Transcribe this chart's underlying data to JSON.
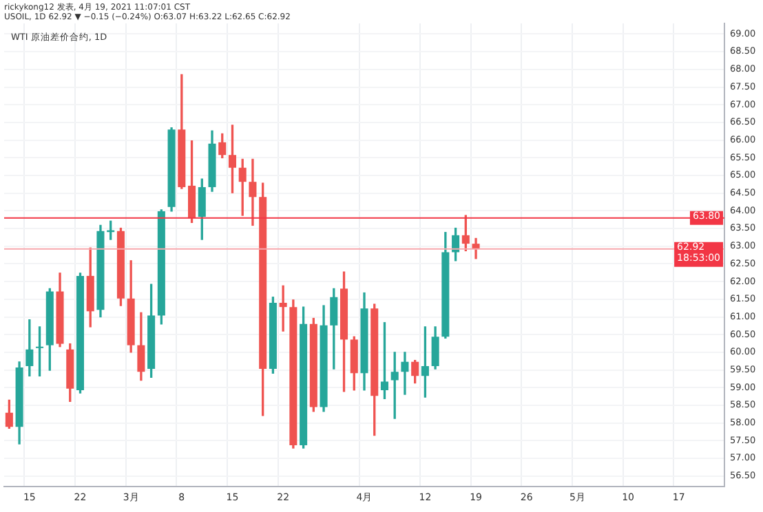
{
  "chart_data": {
    "type": "candlestick",
    "title": "WTI 原油差价合约, 1D",
    "annotations": [
      "rickykong12 发表, 4月 19, 2021 11:07:01 CST",
      "USOIL, 1D 62.92 ▼ −0.15 (−0.24%) O:63.07 H:63.22 L:62.65 C:62.92"
    ],
    "categories": [
      null,
      null,
      "15",
      null,
      null,
      null,
      null,
      "22",
      null,
      null,
      null,
      null,
      "3月",
      null,
      null,
      null,
      null,
      "8",
      null,
      null,
      null,
      null,
      "15",
      null,
      null,
      null,
      null,
      "22",
      null,
      null,
      null,
      null,
      null,
      null,
      null,
      "4月",
      null,
      null,
      null,
      null,
      null,
      "12",
      null,
      null,
      null,
      null,
      "19",
      null,
      null,
      null,
      null,
      "26",
      null,
      null,
      null,
      null,
      "5月",
      null,
      null,
      null,
      null,
      "10",
      null,
      null,
      null,
      null,
      "17",
      null,
      null,
      null,
      null
    ],
    "ohlc": [
      [
        58.29,
        58.65,
        57.85,
        57.89
      ],
      [
        57.89,
        59.73,
        57.41,
        59.57
      ],
      [
        59.61,
        60.92,
        59.33,
        60.08
      ],
      [
        60.12,
        60.72,
        59.33,
        60.14
      ],
      [
        60.2,
        61.8,
        59.49,
        61.72
      ],
      [
        61.72,
        62.24,
        60.16,
        60.24
      ],
      [
        60.08,
        60.24,
        58.61,
        58.97
      ],
      [
        58.93,
        62.24,
        58.85,
        62.16
      ],
      [
        62.16,
        62.95,
        60.72,
        61.16
      ],
      [
        61.2,
        63.59,
        61.0,
        63.43
      ],
      [
        63.4,
        63.71,
        63.19,
        63.45
      ],
      [
        63.43,
        63.51,
        61.32,
        61.52
      ],
      [
        61.52,
        62.59,
        60.0,
        60.2
      ],
      [
        60.2,
        61.12,
        59.21,
        59.45
      ],
      [
        59.53,
        61.92,
        59.29,
        61.04
      ],
      [
        61.04,
        64.03,
        60.8,
        63.99
      ],
      [
        64.11,
        66.35,
        63.99,
        66.3
      ],
      [
        66.3,
        67.85,
        64.63,
        64.67
      ],
      [
        64.71,
        65.98,
        63.67,
        63.79
      ],
      [
        63.83,
        64.9,
        63.19,
        64.67
      ],
      [
        64.67,
        66.26,
        64.55,
        65.9
      ],
      [
        65.94,
        66.18,
        65.5,
        65.58
      ],
      [
        65.58,
        66.42,
        64.51,
        65.22
      ],
      [
        65.22,
        65.46,
        63.87,
        64.82
      ],
      [
        64.82,
        65.46,
        63.59,
        64.39
      ],
      [
        64.39,
        64.78,
        58.21,
        59.53
      ],
      [
        59.53,
        61.56,
        59.41,
        61.4
      ],
      [
        61.4,
        61.88,
        60.6,
        61.28
      ],
      [
        61.28,
        61.48,
        57.29,
        57.37
      ],
      [
        57.37,
        61.28,
        57.29,
        60.8
      ],
      [
        60.8,
        60.96,
        58.33,
        58.45
      ],
      [
        58.45,
        61.32,
        58.33,
        60.76
      ],
      [
        60.76,
        61.8,
        59.53,
        61.56
      ],
      [
        61.8,
        62.27,
        58.89,
        60.36
      ],
      [
        60.36,
        60.44,
        58.93,
        59.41
      ],
      [
        59.41,
        61.68,
        58.93,
        61.24
      ],
      [
        61.24,
        61.36,
        57.65,
        58.77
      ],
      [
        58.93,
        60.84,
        58.69,
        59.17
      ],
      [
        59.21,
        60.0,
        58.13,
        59.45
      ],
      [
        59.45,
        60.0,
        58.81,
        59.73
      ],
      [
        59.73,
        59.77,
        59.13,
        59.33
      ],
      [
        59.33,
        60.72,
        58.73,
        59.61
      ],
      [
        59.61,
        60.72,
        59.53,
        60.44
      ],
      [
        60.44,
        63.39,
        60.4,
        62.83
      ],
      [
        62.83,
        63.51,
        62.59,
        63.31
      ],
      [
        63.31,
        63.87,
        62.87,
        63.07
      ],
      [
        63.07,
        63.22,
        62.65,
        62.92
      ],
      null,
      null,
      null,
      null,
      null,
      null,
      null,
      null,
      null,
      null,
      null,
      null,
      null,
      null,
      null,
      null,
      null,
      null,
      null,
      null,
      null,
      null,
      null,
      null
    ],
    "ylim": [
      56.2,
      69.3
    ],
    "yticks": [
      {
        "value": 56.5,
        "label": "56.50"
      },
      {
        "value": 57,
        "label": "57.00"
      },
      {
        "value": 57.5,
        "label": "57.50"
      },
      {
        "value": 58,
        "label": "58.00"
      },
      {
        "value": 58.5,
        "label": "58.50"
      },
      {
        "value": 59,
        "label": "59.00"
      },
      {
        "value": 59.5,
        "label": "59.50"
      },
      {
        "value": 60,
        "label": "60.00"
      },
      {
        "value": 60.5,
        "label": "60.50"
      },
      {
        "value": 61,
        "label": "61.00"
      },
      {
        "value": 61.5,
        "label": "61.50"
      },
      {
        "value": 62,
        "label": "62.00"
      },
      {
        "value": 62.5,
        "label": "62.50"
      },
      {
        "value": 63,
        "label": "63.00"
      },
      {
        "value": 63.5,
        "label": "63.50"
      },
      {
        "value": 64,
        "label": "64.00"
      },
      {
        "value": 64.5,
        "label": "64.50"
      },
      {
        "value": 65,
        "label": "65.00"
      },
      {
        "value": 65.5,
        "label": "65.50"
      },
      {
        "value": 66,
        "label": "66.00"
      },
      {
        "value": 66.5,
        "label": "66.50"
      },
      {
        "value": 67,
        "label": "67.00"
      },
      {
        "value": 67.5,
        "label": "67.50"
      },
      {
        "value": 68,
        "label": "68.00"
      },
      {
        "value": 68.5,
        "label": "68.50"
      },
      {
        "value": 69,
        "label": "69.00"
      }
    ],
    "ref_lines": [
      {
        "axis": "y",
        "value": 63.8,
        "label": "63.80",
        "color": "#f23645"
      },
      {
        "axis": "y",
        "value": 62.92,
        "label": "62.92\n18:53:00",
        "color": "#f7a7ad"
      }
    ],
    "grid": true
  }
}
